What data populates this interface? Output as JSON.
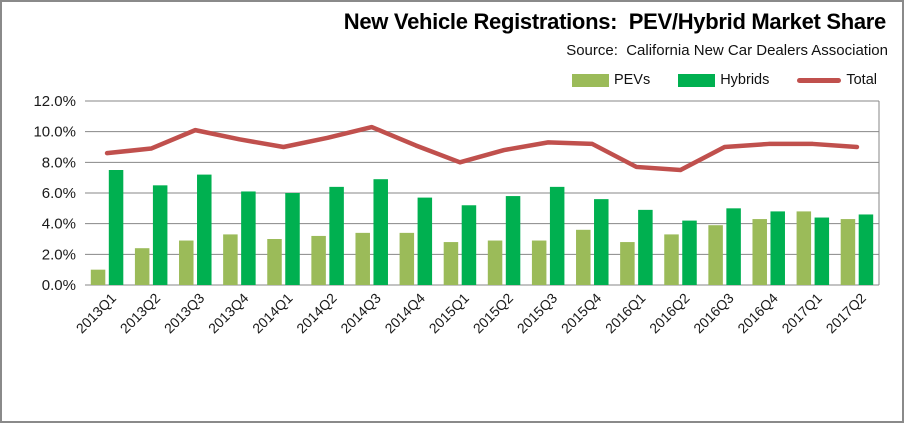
{
  "header": {
    "title": "New Vehicle Registrations:  PEV/Hybrid Market Share",
    "source": "Source:  California New Car Dealers Association"
  },
  "legend": {
    "items": [
      {
        "label": "PEVs",
        "color": "#9bbb59",
        "shape": "rect"
      },
      {
        "label": "Hybrids",
        "color": "#00b050",
        "shape": "rect"
      },
      {
        "label": "Total",
        "color": "#c0504d",
        "shape": "line"
      }
    ]
  },
  "chart_data": {
    "type": "bar+line",
    "categories": [
      "2013Q1",
      "2013Q2",
      "2013Q3",
      "2013Q4",
      "2014Q1",
      "2014Q2",
      "2014Q3",
      "2014Q4",
      "2015Q1",
      "2015Q2",
      "2015Q3",
      "2015Q4",
      "2016Q1",
      "2016Q2",
      "2016Q3",
      "2016Q4",
      "2017Q1",
      "2017Q2"
    ],
    "series": [
      {
        "name": "PEVs",
        "type": "bar",
        "color": "#9bbb59",
        "values": [
          1.0,
          2.4,
          2.9,
          3.3,
          3.0,
          3.2,
          3.4,
          3.4,
          2.8,
          2.9,
          2.9,
          3.6,
          2.8,
          3.3,
          3.9,
          4.3,
          4.8,
          4.3
        ]
      },
      {
        "name": "Hybrids",
        "type": "bar",
        "color": "#00b050",
        "values": [
          7.5,
          6.5,
          7.2,
          6.1,
          6.0,
          6.4,
          6.9,
          5.7,
          5.2,
          5.8,
          6.4,
          5.6,
          4.9,
          4.2,
          5.0,
          4.8,
          4.4,
          4.6
        ]
      },
      {
        "name": "Total",
        "type": "line",
        "color": "#c0504d",
        "values": [
          8.6,
          8.9,
          10.1,
          9.5,
          9.0,
          9.6,
          10.3,
          9.1,
          8.0,
          8.8,
          9.3,
          9.2,
          7.7,
          7.5,
          9.0,
          9.2,
          9.2,
          9.0
        ]
      }
    ],
    "ylim": [
      0,
      12
    ],
    "ytick_step": 2,
    "ytick_labels": [
      "0.0%",
      "2.0%",
      "4.0%",
      "6.0%",
      "8.0%",
      "10.0%",
      "12.0%"
    ],
    "grid": true,
    "gridline_color": "#878787",
    "axis_text_color": "#1a1a1a",
    "legend_position": "top-right",
    "x_label_rotation": -45
  }
}
